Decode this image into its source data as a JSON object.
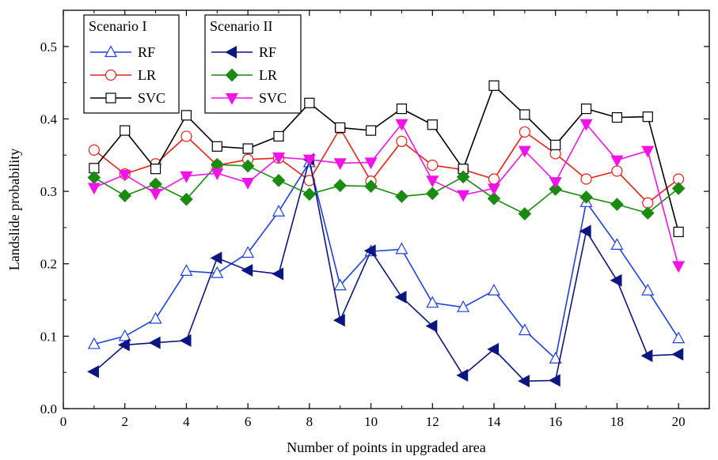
{
  "chart_data": {
    "type": "line",
    "xlabel": "Number of points in upgraded area",
    "ylabel": "Landslide probability",
    "xlim": [
      0,
      21
    ],
    "ylim": [
      0,
      0.55
    ],
    "x_ticks": [
      0,
      2,
      4,
      6,
      8,
      10,
      12,
      14,
      16,
      18,
      20
    ],
    "y_ticks": [
      0.0,
      0.1,
      0.2,
      0.3,
      0.4,
      0.5
    ],
    "x_tick_labels": [
      "0",
      "2",
      "4",
      "6",
      "8",
      "10",
      "12",
      "14",
      "16",
      "18",
      "20"
    ],
    "y_tick_labels": [
      "0.0",
      "0.1",
      "0.2",
      "0.3",
      "0.4",
      "0.5"
    ],
    "grid": false,
    "x": [
      1,
      2,
      3,
      4,
      5,
      6,
      7,
      8,
      9,
      10,
      11,
      12,
      13,
      14,
      15,
      16,
      17,
      18,
      19,
      20
    ],
    "legend_groups": [
      {
        "title": "Scenario I",
        "series_indices": [
          0,
          1,
          2
        ]
      },
      {
        "title": "Scenario II",
        "series_indices": [
          3,
          4,
          5
        ]
      }
    ],
    "series": [
      {
        "name": "RF",
        "group": "Scenario I",
        "color": "#1f3fe0",
        "marker": "open-triangle-up",
        "values": [
          0.089,
          0.1,
          0.124,
          0.19,
          0.187,
          0.215,
          0.272,
          0.34,
          0.17,
          0.217,
          0.22,
          0.146,
          0.14,
          0.163,
          0.108,
          0.069,
          0.285,
          0.226,
          0.163,
          0.097
        ]
      },
      {
        "name": "LR",
        "group": "Scenario I",
        "color": "#e8201a",
        "marker": "open-circle",
        "values": [
          0.357,
          0.324,
          0.338,
          0.376,
          0.336,
          0.344,
          0.346,
          0.315,
          0.387,
          0.314,
          0.369,
          0.336,
          0.33,
          0.317,
          0.382,
          0.352,
          0.317,
          0.328,
          0.284,
          0.317
        ]
      },
      {
        "name": "SVC",
        "group": "Scenario I",
        "color": "#000000",
        "marker": "open-square",
        "values": [
          0.332,
          0.384,
          0.331,
          0.405,
          0.362,
          0.359,
          0.376,
          0.422,
          0.388,
          0.384,
          0.414,
          0.392,
          0.331,
          0.446,
          0.406,
          0.364,
          0.414,
          0.402,
          0.403,
          0.244
        ]
      },
      {
        "name": "RF",
        "group": "Scenario II",
        "color": "#0d1680",
        "marker": "filled-triangle-left",
        "values": [
          0.051,
          0.088,
          0.091,
          0.094,
          0.208,
          0.191,
          0.186,
          0.344,
          0.122,
          0.218,
          0.154,
          0.114,
          0.046,
          0.082,
          0.038,
          0.039,
          0.245,
          0.177,
          0.073,
          0.075
        ]
      },
      {
        "name": "LR",
        "group": "Scenario II",
        "color": "#1a8a10",
        "marker": "filled-diamond",
        "values": [
          0.319,
          0.294,
          0.31,
          0.289,
          0.337,
          0.335,
          0.315,
          0.296,
          0.308,
          0.307,
          0.293,
          0.297,
          0.32,
          0.29,
          0.269,
          0.303,
          0.292,
          0.282,
          0.27,
          0.304
        ]
      },
      {
        "name": "SVC",
        "group": "Scenario II",
        "color": "#f014e8",
        "marker": "filled-triangle-down",
        "values": [
          0.305,
          0.323,
          0.297,
          0.321,
          0.325,
          0.312,
          0.347,
          0.344,
          0.339,
          0.34,
          0.393,
          0.315,
          0.295,
          0.304,
          0.356,
          0.313,
          0.393,
          0.343,
          0.356,
          0.197
        ]
      }
    ]
  }
}
